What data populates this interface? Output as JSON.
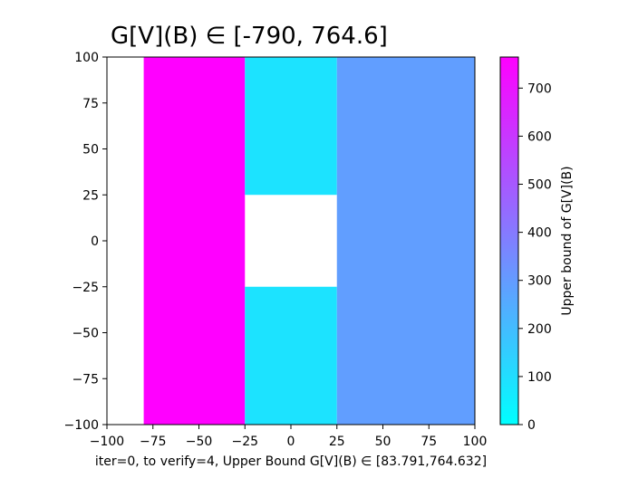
{
  "chart_data": {
    "type": "heatmap",
    "title": "G[V](B) ∈ [-790, 764.6]",
    "xlabel": "iter=0, to verify=4, Upper Bound G[V](B) ∈ [83.791,764.632]",
    "ylabel": "",
    "xlim": [
      -100,
      100
    ],
    "ylim": [
      -100,
      100
    ],
    "xticks": [
      "−100",
      "−75",
      "−50",
      "−25",
      "0",
      "25",
      "50",
      "75",
      "100"
    ],
    "yticks": [
      "−100",
      "−75",
      "−50",
      "−25",
      "0",
      "25",
      "50",
      "75",
      "100"
    ],
    "xtick_values": [
      -100,
      -75,
      -50,
      -25,
      0,
      25,
      50,
      75,
      100
    ],
    "ytick_values": [
      -100,
      -75,
      -50,
      -25,
      0,
      25,
      50,
      75,
      100
    ],
    "grid": false,
    "cells": [
      {
        "x0": -80,
        "x1": -25,
        "y0": -100,
        "y1": 100,
        "value": 764.632
      },
      {
        "x0": -25,
        "x1": 25,
        "y0": 25,
        "y1": 100,
        "value": 83.791
      },
      {
        "x0": -25,
        "x1": 25,
        "y0": -100,
        "y1": -25,
        "value": 83.791
      },
      {
        "x0": 25,
        "x1": 100,
        "y0": -100,
        "y1": 100,
        "value": 290
      }
    ],
    "colorbar": {
      "label": "Upper bound of G[V](B)",
      "colormap": "cool",
      "vmin": 0,
      "vmax": 764.632,
      "ticks": [
        0,
        100,
        200,
        300,
        400,
        500,
        600,
        700
      ],
      "tick_labels": [
        "0",
        "100",
        "200",
        "300",
        "400",
        "500",
        "600",
        "700"
      ]
    }
  }
}
